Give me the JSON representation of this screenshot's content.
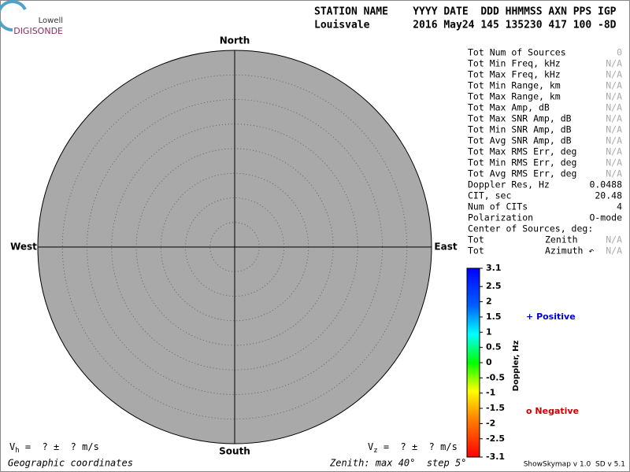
{
  "logo": {
    "top": "Lowell",
    "name": "DIGISONDE"
  },
  "header": {
    "line1": "STATION NAME    YYYY DATE  DDD HHMMSS AXN PPS IGP",
    "line2": "Louisvale       2016 May24 145 135230 417 100 -8D"
  },
  "skymap": {
    "north": "North",
    "south": "South",
    "west": "West",
    "east": "East",
    "background": "#a9a9a9"
  },
  "info": {
    "rows": [
      {
        "label": "Tot Num of Sources",
        "value": "0",
        "color": "#aaaaaa"
      },
      {
        "label": "Tot Min Freq, kHz",
        "value": "N/A",
        "color": "#aaaaaa"
      },
      {
        "label": "Tot Max Freq, kHz",
        "value": "N/A",
        "color": "#aaaaaa"
      },
      {
        "label": "Tot Min Range, km",
        "value": "N/A",
        "color": "#aaaaaa"
      },
      {
        "label": "Tot Max Range, km",
        "value": "N/A",
        "color": "#aaaaaa"
      },
      {
        "label": "Tot Max Amp, dB",
        "value": "N/A",
        "color": "#aaaaaa"
      },
      {
        "label": "Tot Max SNR Amp, dB",
        "value": "N/A",
        "color": "#aaaaaa"
      },
      {
        "label": "Tot Min SNR Amp, dB",
        "value": "N/A",
        "color": "#aaaaaa"
      },
      {
        "label": "Tot Avg SNR Amp, dB",
        "value": "N/A",
        "color": "#aaaaaa"
      },
      {
        "label": "Tot Max RMS Err, deg",
        "value": "N/A",
        "color": "#aaaaaa"
      },
      {
        "label": "Tot Min RMS Err, deg",
        "value": "N/A",
        "color": "#aaaaaa"
      },
      {
        "label": "Tot Avg RMS Err, deg",
        "value": "N/A",
        "color": "#aaaaaa"
      },
      {
        "label": "Doppler Res, Hz",
        "value": "0.0488",
        "color": "#000000"
      },
      {
        "label": "CIT, sec",
        "value": "20.48",
        "color": "#000000"
      },
      {
        "label": "Num of CITs",
        "value": "4",
        "color": "#000000"
      },
      {
        "label": "Polarization",
        "value": "O-mode",
        "color": "#000000"
      },
      {
        "label": "Center of Sources, deg:"
      },
      {
        "label": "Tot",
        "sublabel": "Zenith",
        "value": "N/A",
        "color": "#aaaaaa"
      },
      {
        "label": "Tot",
        "sublabel": "Azimuth ↶",
        "value": "N/A",
        "color": "#aaaaaa"
      }
    ]
  },
  "colorbar": {
    "label": "Doppler, Hz",
    "range": [
      -3.1,
      3.1
    ],
    "ticks": [
      3.1,
      2.5,
      2,
      1.5,
      1,
      0.5,
      0,
      -0.5,
      -1,
      -1.5,
      -2,
      -2.5,
      -3.1
    ],
    "positive": {
      "symbol": "+",
      "text": "Positive",
      "color": "#0000cc"
    },
    "negative": {
      "symbol": "o",
      "text": "Negative",
      "color": "#cc0000"
    }
  },
  "footer": {
    "vh": {
      "symbol": "V",
      "subscript": "h",
      "text": " =  ? ±  ? m/s"
    },
    "vz": {
      "symbol": "V",
      "subscript": "z",
      "text": " =  ? ±  ? m/s"
    },
    "coordinates": "Geographic coordinates",
    "zenith": "Zenith: max 40°  step 5°",
    "version": "ShowSkymap v 1.0  SD v 5.1"
  }
}
